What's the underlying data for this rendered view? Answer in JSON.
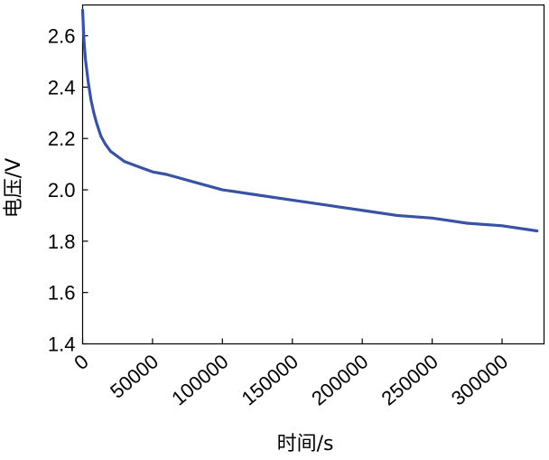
{
  "chart_data": {
    "type": "line",
    "xlabel": "时间/s",
    "ylabel": "电压/V",
    "xlim": [
      0,
      330000
    ],
    "ylim": [
      1.4,
      2.72
    ],
    "xticks": [
      0,
      50000,
      100000,
      150000,
      200000,
      250000,
      300000
    ],
    "xtick_labels": [
      "0",
      "50000",
      "100000",
      "150000",
      "200000",
      "250000",
      "300000"
    ],
    "yticks": [
      1.4,
      1.6,
      1.8,
      2.0,
      2.2,
      2.4,
      2.6
    ],
    "ytick_labels": [
      "1.4",
      "1.6",
      "1.8",
      "2.0",
      "2.2",
      "2.4",
      "2.6"
    ],
    "grid": false,
    "series": [
      {
        "color": "#3953a4",
        "x": [
          0,
          1000,
          2000,
          4000,
          6000,
          8000,
          10000,
          13000,
          16000,
          20000,
          25000,
          30000,
          40000,
          50000,
          60000,
          80000,
          100000,
          125000,
          150000,
          175000,
          200000,
          225000,
          250000,
          275000,
          300000,
          325000
        ],
        "y": [
          2.7,
          2.58,
          2.51,
          2.42,
          2.35,
          2.3,
          2.26,
          2.21,
          2.18,
          2.15,
          2.13,
          2.11,
          2.09,
          2.07,
          2.06,
          2.03,
          2.0,
          1.98,
          1.96,
          1.94,
          1.92,
          1.9,
          1.89,
          1.87,
          1.86,
          1.84
        ]
      }
    ]
  }
}
